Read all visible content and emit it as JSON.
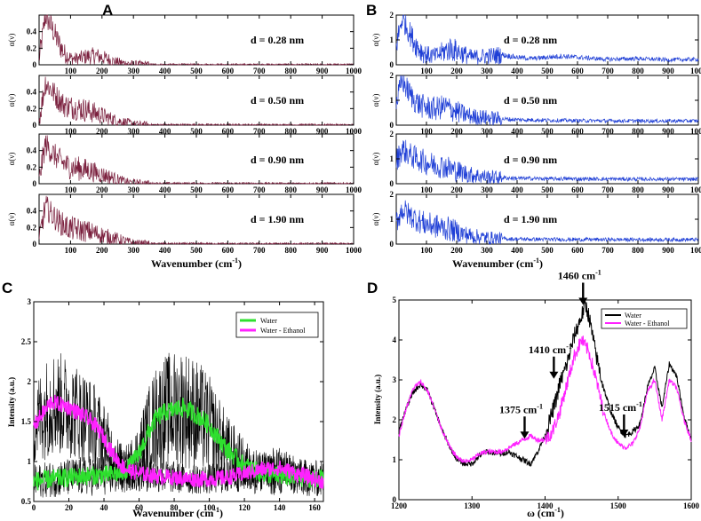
{
  "chart_data": [
    {
      "panel": "A",
      "type": "line",
      "color": "#7a1f3d",
      "xlabel": "Wavenumber (cm",
      "xlabel_sup": "-1",
      "xlabel_close": ")",
      "ylabel": "α(ν)",
      "xlim": [
        0,
        1000
      ],
      "xticks": [
        100,
        200,
        300,
        400,
        500,
        600,
        700,
        800,
        900,
        1000
      ],
      "ylim": [
        0,
        0.6
      ],
      "yticks": [
        0,
        0.2,
        0.4
      ],
      "subplots": [
        {
          "label": "d = 0.28 nm",
          "x": [
            0,
            20,
            40,
            60,
            80,
            100,
            120,
            150,
            180,
            210,
            240,
            270,
            300,
            350,
            400,
            1000
          ],
          "y": [
            0.05,
            0.6,
            0.45,
            0.28,
            0.14,
            0.08,
            0.07,
            0.1,
            0.11,
            0.08,
            0.04,
            0.02,
            0.01,
            0.005,
            0.003,
            0.002
          ]
        },
        {
          "label": "d = 0.50 nm",
          "x": [
            0,
            20,
            40,
            60,
            80,
            100,
            130,
            160,
            190,
            220,
            250,
            280,
            310,
            350,
            1000
          ],
          "y": [
            0.05,
            0.52,
            0.42,
            0.32,
            0.24,
            0.22,
            0.2,
            0.17,
            0.13,
            0.09,
            0.05,
            0.03,
            0.01,
            0.005,
            0.003
          ]
        },
        {
          "label": "d = 0.90 nm",
          "x": [
            0,
            20,
            40,
            60,
            80,
            100,
            130,
            160,
            190,
            220,
            250,
            280,
            310,
            350,
            1000
          ],
          "y": [
            0.05,
            0.48,
            0.38,
            0.3,
            0.24,
            0.2,
            0.18,
            0.16,
            0.12,
            0.09,
            0.05,
            0.02,
            0.01,
            0.005,
            0.003
          ]
        },
        {
          "label": "d = 1.90 nm",
          "x": [
            0,
            20,
            40,
            60,
            80,
            100,
            130,
            160,
            190,
            220,
            250,
            280,
            310,
            350,
            1000
          ],
          "y": [
            0.05,
            0.46,
            0.36,
            0.28,
            0.22,
            0.19,
            0.17,
            0.15,
            0.12,
            0.09,
            0.06,
            0.03,
            0.01,
            0.005,
            0.003
          ]
        }
      ]
    },
    {
      "panel": "B",
      "type": "line",
      "color": "#1f3fd6",
      "xlabel": "Wavenumber (cm",
      "xlabel_sup": "-1",
      "xlabel_close": ")",
      "ylabel": "α(ν)",
      "xlim": [
        0,
        1000
      ],
      "xticks": [
        100,
        200,
        300,
        400,
        500,
        600,
        700,
        800,
        900,
        1000
      ],
      "ylim": [
        0,
        2
      ],
      "yticks": [
        0,
        1,
        2
      ],
      "subplots": [
        {
          "label": "d = 0.28 nm",
          "x": [
            0,
            20,
            40,
            60,
            80,
            100,
            130,
            160,
            180,
            210,
            250,
            300,
            350,
            400,
            450,
            500,
            550,
            600,
            700,
            800,
            900,
            1000
          ],
          "y": [
            0.8,
            1.9,
            1.4,
            0.9,
            0.6,
            0.4,
            0.35,
            0.55,
            0.65,
            0.5,
            0.3,
            0.35,
            0.4,
            0.3,
            0.25,
            0.3,
            0.35,
            0.3,
            0.22,
            0.25,
            0.2,
            0.22
          ]
        },
        {
          "label": "d = 0.50 nm",
          "x": [
            0,
            20,
            40,
            60,
            80,
            100,
            130,
            160,
            190,
            220,
            250,
            300,
            350,
            400,
            500,
            600,
            800,
            1000
          ],
          "y": [
            0.9,
            1.8,
            1.35,
            1.0,
            0.8,
            0.7,
            0.65,
            0.75,
            0.6,
            0.45,
            0.35,
            0.3,
            0.25,
            0.22,
            0.2,
            0.18,
            0.17,
            0.17
          ]
        },
        {
          "label": "d = 0.90 nm",
          "x": [
            0,
            20,
            40,
            60,
            80,
            100,
            130,
            160,
            190,
            220,
            250,
            300,
            350,
            400,
            500,
            700,
            1000
          ],
          "y": [
            0.9,
            1.4,
            1.2,
            1.05,
            0.95,
            0.85,
            0.75,
            0.7,
            0.55,
            0.45,
            0.35,
            0.28,
            0.24,
            0.22,
            0.2,
            0.19,
            0.18
          ]
        },
        {
          "label": "d = 1.90 nm",
          "x": [
            0,
            20,
            40,
            60,
            80,
            100,
            130,
            160,
            190,
            220,
            250,
            300,
            350,
            400,
            500,
            700,
            1000
          ],
          "y": [
            0.9,
            1.4,
            1.2,
            1.05,
            0.9,
            0.8,
            0.72,
            0.65,
            0.55,
            0.42,
            0.32,
            0.25,
            0.22,
            0.2,
            0.19,
            0.18,
            0.18
          ]
        }
      ]
    },
    {
      "panel": "C",
      "type": "line",
      "xlabel": "Wavenumber (cm",
      "xlabel_sup": "-1",
      "xlabel_close": ")",
      "ylabel": "Intensity (a.u.)",
      "xlim": [
        0,
        165
      ],
      "xticks": [
        0,
        20,
        40,
        60,
        80,
        100,
        120,
        140,
        160
      ],
      "ylim": [
        0.5,
        3
      ],
      "yticks": [
        0.5,
        1,
        1.5,
        2,
        2.5,
        3
      ],
      "ytick_labels": [
        "0.5",
        "1",
        "1.5",
        "2",
        "2.5",
        "3"
      ],
      "legend_position": "top-right",
      "series": [
        {
          "name": "Water",
          "color": "#2ee02e",
          "noise": 0.12,
          "x": [
            0,
            10,
            20,
            30,
            40,
            50,
            55,
            60,
            65,
            70,
            75,
            80,
            85,
            90,
            95,
            100,
            105,
            110,
            120,
            130,
            140,
            150,
            165
          ],
          "y": [
            0.75,
            0.78,
            0.8,
            0.82,
            0.83,
            0.85,
            0.95,
            1.1,
            1.35,
            1.55,
            1.62,
            1.65,
            1.68,
            1.62,
            1.55,
            1.45,
            1.3,
            1.15,
            0.95,
            0.85,
            0.82,
            0.8,
            0.78
          ]
        },
        {
          "name": "Water - Ethanol",
          "color": "#ff22ff",
          "noise": 0.1,
          "x": [
            0,
            5,
            10,
            20,
            30,
            35,
            40,
            45,
            50,
            55,
            60,
            70,
            80,
            90,
            100,
            110,
            120,
            130,
            140,
            150,
            165
          ],
          "y": [
            1.45,
            1.6,
            1.75,
            1.68,
            1.55,
            1.45,
            1.3,
            1.1,
            0.95,
            0.88,
            0.85,
            0.82,
            0.8,
            0.78,
            0.78,
            0.8,
            0.85,
            0.9,
            0.92,
            0.85,
            0.75
          ]
        }
      ]
    },
    {
      "panel": "D",
      "type": "line",
      "xlabel": "ω (cm",
      "xlabel_sup": "-1",
      "xlabel_close": ")",
      "ylabel": "Intensity (a.u.)",
      "xlim": [
        1200,
        1600
      ],
      "xticks": [
        1200,
        1300,
        1400,
        1500,
        1600
      ],
      "ylim": [
        0,
        5
      ],
      "yticks": [
        0,
        1,
        2,
        3,
        4,
        5
      ],
      "legend_position": "top-right",
      "series": [
        {
          "name": "Water",
          "color": "#000000",
          "noise": 0.07,
          "x": [
            1200,
            1210,
            1220,
            1230,
            1240,
            1250,
            1260,
            1270,
            1280,
            1290,
            1300,
            1310,
            1320,
            1340,
            1350,
            1360,
            1370,
            1380,
            1390,
            1400,
            1410,
            1415,
            1420,
            1430,
            1440,
            1450,
            1455,
            1460,
            1470,
            1480,
            1490,
            1500,
            1510,
            1520,
            1530,
            1540,
            1550,
            1560,
            1570,
            1580,
            1590,
            1600
          ],
          "y": [
            1.7,
            2.3,
            2.7,
            2.9,
            2.7,
            2.2,
            1.7,
            1.3,
            1.0,
            0.9,
            0.9,
            1.1,
            1.2,
            1.15,
            1.2,
            1.1,
            1.0,
            0.9,
            1.2,
            1.6,
            2.2,
            2.5,
            2.9,
            3.4,
            4.1,
            4.6,
            4.9,
            4.6,
            3.6,
            2.8,
            2.2,
            1.8,
            1.6,
            1.7,
            1.9,
            2.8,
            3.3,
            2.3,
            3.4,
            3.1,
            2.1,
            1.5
          ]
        },
        {
          "name": "Water - Ethanol",
          "color": "#ff22ff",
          "noise": 0.06,
          "x": [
            1200,
            1210,
            1220,
            1230,
            1240,
            1250,
            1260,
            1270,
            1280,
            1290,
            1300,
            1310,
            1320,
            1340,
            1350,
            1360,
            1370,
            1380,
            1390,
            1400,
            1410,
            1420,
            1430,
            1440,
            1450,
            1460,
            1470,
            1480,
            1490,
            1500,
            1510,
            1520,
            1530,
            1540,
            1550,
            1560,
            1570,
            1580,
            1590,
            1600
          ],
          "y": [
            1.6,
            2.3,
            2.8,
            2.95,
            2.7,
            2.2,
            1.7,
            1.3,
            1.05,
            0.95,
            1.0,
            1.15,
            1.2,
            1.2,
            1.3,
            1.4,
            1.5,
            1.6,
            1.5,
            1.5,
            1.7,
            2.2,
            2.9,
            3.6,
            4.0,
            3.7,
            3.0,
            2.2,
            1.7,
            1.4,
            1.3,
            1.4,
            1.8,
            2.7,
            3.0,
            2.0,
            3.0,
            2.8,
            2.0,
            1.5
          ]
        }
      ],
      "annotations": [
        {
          "text": "1460 cm",
          "sup": "-1",
          "x": 1452,
          "y": 4.9
        },
        {
          "text": "1410 cm",
          "sup": "-1",
          "x": 1412,
          "y": 3.05
        },
        {
          "text": "1375 cm",
          "sup": "-1",
          "x": 1372,
          "y": 1.55
        },
        {
          "text": "1515 cm",
          "sup": "-1",
          "x": 1508,
          "y": 1.6
        }
      ]
    }
  ]
}
